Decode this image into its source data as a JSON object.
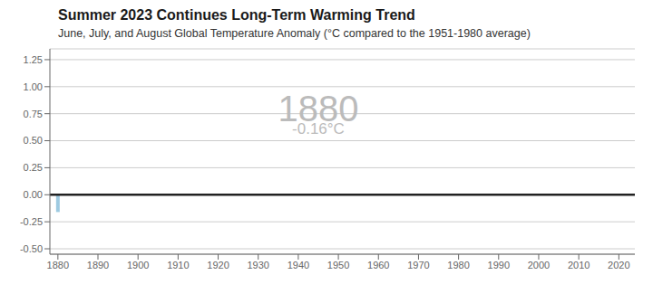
{
  "chart_data": {
    "type": "bar",
    "title": "Summer 2023 Continues Long-Term Warming Trend",
    "subtitle": "June, July, and August Global Temperature Anomaly (°C compared to the 1951-1980 average)",
    "x": [
      1880
    ],
    "values": [
      -0.16
    ],
    "color": "#9ecae1",
    "xlim": [
      1878,
      2024
    ],
    "ylim": [
      -0.55,
      1.35
    ],
    "xticks": [
      1880,
      1890,
      1900,
      1910,
      1920,
      1930,
      1940,
      1950,
      1960,
      1970,
      1980,
      1990,
      2000,
      2010,
      2020
    ],
    "yticks": [
      {
        "value": -0.5,
        "label": "-0.50"
      },
      -0.25,
      {
        "value": 0,
        "label": "0.00"
      },
      0.25,
      {
        "value": 0.5,
        "label": "0.50"
      },
      0.75,
      {
        "value": 1,
        "label": "1.00"
      },
      1.25
    ],
    "grid": true,
    "annotations": [
      {
        "text": "1880",
        "x": 1945,
        "y": 0.8,
        "color": "#bbbbbb"
      },
      {
        "text": "-0.16°C",
        "x": 1945,
        "y": 0.61,
        "color": "#bbbbbb"
      }
    ]
  }
}
